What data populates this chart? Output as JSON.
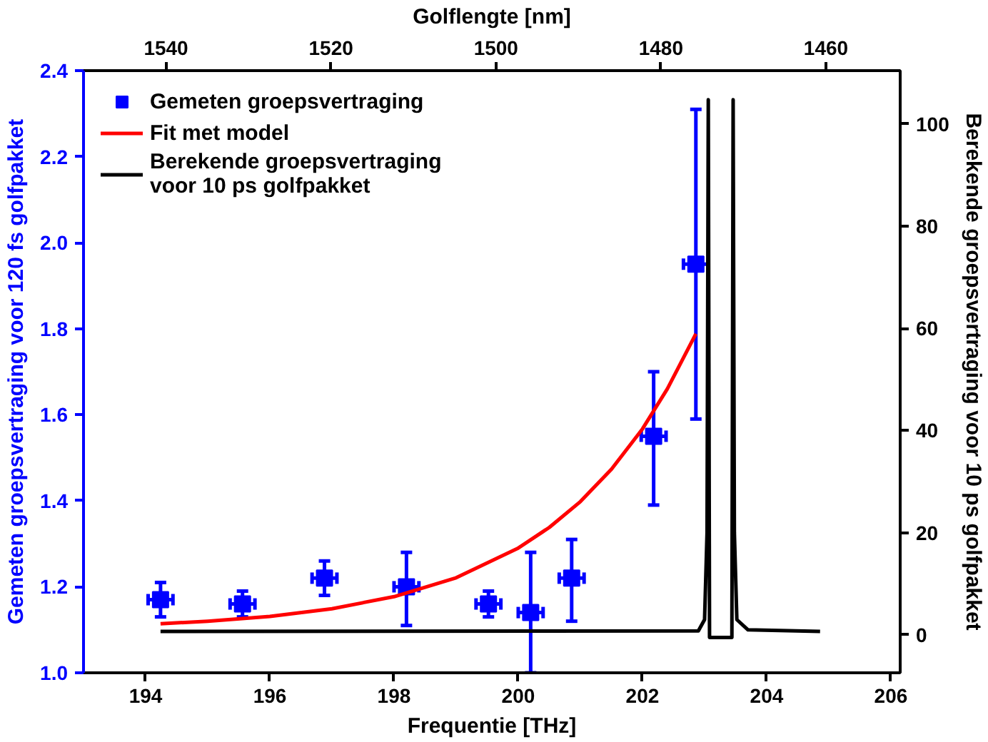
{
  "chart_data": {
    "type": "scatter",
    "xlabel": "Frequentie [THz]",
    "ylabel": "Gemeten groepsvertraging voor 120 fs golfpakket",
    "y2label": "Berekende groepsvertraging voor 10 ps golfpakket",
    "x2label": "Golflengte [nm]",
    "xlim": [
      193,
      206.15
    ],
    "xticks": [
      194,
      196,
      198,
      200,
      202,
      204,
      206
    ],
    "ylim": [
      1.0,
      2.4
    ],
    "yticks": [
      {
        "value": 1.0,
        "label": "1.0"
      },
      {
        "value": 1.2,
        "label": "1.2"
      },
      {
        "value": 1.4,
        "label": "1.4"
      },
      {
        "value": 1.6,
        "label": "1.6"
      },
      {
        "value": 1.8,
        "label": "1.8"
      },
      {
        "value": 2.0,
        "label": "2.0"
      },
      {
        "value": 2.2,
        "label": "2.2"
      },
      {
        "value": 2.4,
        "label": "2.4"
      }
    ],
    "y2lim": [
      -7.4,
      110.4
    ],
    "y2ticks": [
      0,
      20,
      40,
      60,
      80,
      100
    ],
    "x2lim": [
      1550,
      1451
    ],
    "x2ticks": [
      1540,
      1520,
      1500,
      1480,
      1460
    ],
    "grid": false,
    "legend": "top left",
    "series": [
      {
        "name": "Gemeten groepsvertraging",
        "marker": "square",
        "color": "#0000ff",
        "x": [
          194.24,
          195.56,
          196.88,
          198.2,
          199.52,
          200.2,
          200.86,
          202.18,
          202.86
        ],
        "values": [
          1.17,
          1.16,
          1.22,
          1.2,
          1.16,
          1.14,
          1.22,
          1.55,
          1.95
        ],
        "errors": [
          [
            1.13,
            1.21
          ],
          [
            1.13,
            1.19
          ],
          [
            1.18,
            1.26
          ],
          [
            1.11,
            1.28
          ],
          [
            1.13,
            1.19
          ],
          [
            1.0,
            1.28
          ],
          [
            1.12,
            1.31
          ],
          [
            1.39,
            1.7
          ],
          [
            1.59,
            2.31
          ]
        ],
        "xerrors": [
          0.2,
          0.2,
          0.2,
          0.2,
          0.2,
          0.2,
          0.2,
          0.2,
          0.2
        ]
      },
      {
        "name": "Fit met model",
        "type": "line",
        "color": "#ff0000",
        "x": [
          194.24,
          195,
          196,
          197,
          198,
          199,
          200,
          200.5,
          201,
          201.5,
          202,
          202.4,
          202.86
        ],
        "values": [
          1.114,
          1.12,
          1.131,
          1.149,
          1.177,
          1.221,
          1.29,
          1.338,
          1.398,
          1.473,
          1.567,
          1.66,
          1.788
        ]
      },
      {
        "name": "Berekende groepsvertraging\nvoor 10 ps golfpakket",
        "type": "line",
        "axis": "y2",
        "color": "#000000",
        "x": [
          194.24,
          202.9,
          203.0,
          203.04,
          203.06,
          203.08,
          203.44,
          203.46,
          203.48,
          203.52,
          203.7,
          204.86
        ],
        "values": [
          0.7,
          0.8,
          3,
          20,
          104.7,
          -0.5,
          -0.5,
          104.7,
          20,
          3,
          1,
          0.7
        ]
      }
    ]
  }
}
